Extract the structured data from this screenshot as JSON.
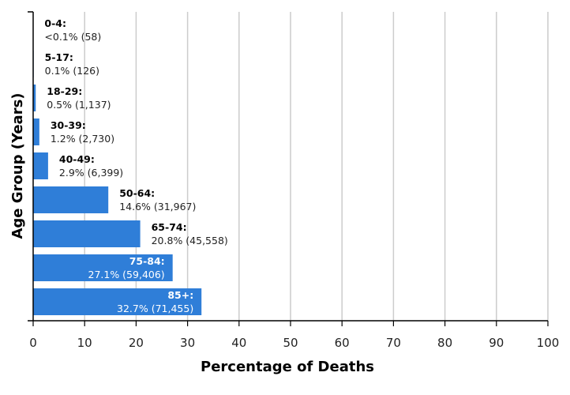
{
  "chart_data": {
    "type": "bar",
    "orientation": "horizontal",
    "categories": [
      "0-4",
      "5-17",
      "18-29",
      "30-39",
      "40-49",
      "50-64",
      "65-74",
      "75-84",
      "85+"
    ],
    "values": [
      0.03,
      0.1,
      0.5,
      1.2,
      2.9,
      14.6,
      20.8,
      27.1,
      32.7
    ],
    "data_labels": [
      {
        "group": "0-4:",
        "value": "<0.1% (58)"
      },
      {
        "group": "5-17:",
        "value": "0.1% (126)"
      },
      {
        "group": "18-29:",
        "value": "0.5% (1,137)"
      },
      {
        "group": "30-39:",
        "value": "1.2% (2,730)"
      },
      {
        "group": "40-49:",
        "value": "2.9% (6,399)"
      },
      {
        "group": "50-64:",
        "value": "14.6% (31,967)"
      },
      {
        "group": "65-74:",
        "value": "20.8% (45,558)"
      },
      {
        "group": "75-84:",
        "value": "27.1% (59,406)"
      },
      {
        "group": "85+:",
        "value": "32.7% (71,455)"
      }
    ],
    "xlabel": "Percentage of Deaths",
    "ylabel": "Age Group (Years)",
    "xlim": [
      0,
      100
    ],
    "xticks": [
      "0",
      "10",
      "20",
      "30",
      "40",
      "50",
      "60",
      "70",
      "80",
      "90",
      "100"
    ],
    "grid": true,
    "bar_color": "#2f7ed8",
    "label_color_inside": "#ffffff",
    "label_color_outside": "#000000"
  }
}
